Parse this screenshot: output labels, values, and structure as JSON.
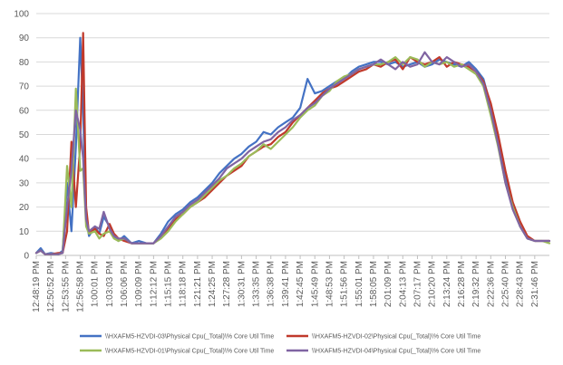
{
  "chart_data": {
    "type": "line",
    "title": "",
    "xlabel": "",
    "ylabel": "",
    "ylim": [
      0,
      100
    ],
    "yticks": [
      0,
      10,
      20,
      30,
      40,
      50,
      60,
      70,
      80,
      90,
      100
    ],
    "grid": "horizontal",
    "legend_position": "bottom",
    "x_tick_labels": [
      "12:48:19 PM",
      "12:50:52 PM",
      "12:53:55 PM",
      "12:56:58 PM",
      "1:00:01 PM",
      "1:03:03 PM",
      "1:06:06 PM",
      "1:09:09 PM",
      "1:12:12 PM",
      "1:15:15 PM",
      "1:18:18 PM",
      "1:21:21 PM",
      "1:24:25 PM",
      "1:27:28 PM",
      "1:30:31 PM",
      "1:33:35 PM",
      "1:36:38 PM",
      "1:39:41 PM",
      "1:42:45 PM",
      "1:45:49 PM",
      "1:48:53 PM",
      "1:51:56 PM",
      "1:55:01 PM",
      "1:58:05 PM",
      "2:01:09 PM",
      "2:04:13 PM",
      "2:07:17 PM",
      "2:10:20 PM",
      "2:13:24 PM",
      "2:16:28 PM",
      "2:19:32 PM",
      "2:22:36 PM",
      "2:25:40 PM",
      "2:28:43 PM",
      "2:31:46 PM"
    ],
    "series": [
      {
        "name": "\\\\HXAFM5-HZVDI-03\\Physical Cpu(_Total)\\% Core Util Time",
        "color": "#4472C4",
        "values": [
          [
            0,
            1
          ],
          [
            0.3,
            3
          ],
          [
            0.6,
            0.5
          ],
          [
            1,
            1
          ],
          [
            1.5,
            0.5
          ],
          [
            1.8,
            2
          ],
          [
            2.1,
            30
          ],
          [
            2.4,
            10
          ],
          [
            2.7,
            45
          ],
          [
            3,
            90
          ],
          [
            3.2,
            60
          ],
          [
            3.4,
            15
          ],
          [
            3.6,
            8
          ],
          [
            4,
            12
          ],
          [
            4.3,
            9
          ],
          [
            4.6,
            16
          ],
          [
            5,
            12
          ],
          [
            5.3,
            8
          ],
          [
            5.6,
            6
          ],
          [
            6,
            8
          ],
          [
            6.5,
            5
          ],
          [
            7,
            6
          ],
          [
            7.5,
            5
          ],
          [
            8,
            5
          ],
          [
            8.5,
            9
          ],
          [
            9,
            14
          ],
          [
            9.5,
            17
          ],
          [
            10,
            19
          ],
          [
            10.5,
            22
          ],
          [
            11,
            24
          ],
          [
            11.5,
            27
          ],
          [
            12,
            30
          ],
          [
            12.5,
            34
          ],
          [
            13,
            37
          ],
          [
            13.5,
            40
          ],
          [
            14,
            42
          ],
          [
            14.5,
            45
          ],
          [
            15,
            47
          ],
          [
            15.5,
            51
          ],
          [
            16,
            50
          ],
          [
            16.5,
            53
          ],
          [
            17,
            55
          ],
          [
            17.5,
            57
          ],
          [
            18,
            61
          ],
          [
            18.5,
            73
          ],
          [
            19,
            67
          ],
          [
            19.5,
            68
          ],
          [
            20,
            70
          ],
          [
            20.5,
            72
          ],
          [
            21,
            73
          ],
          [
            21.5,
            76
          ],
          [
            22,
            78
          ],
          [
            22.5,
            79
          ],
          [
            23,
            80
          ],
          [
            23.5,
            80
          ],
          [
            24,
            79
          ],
          [
            24.5,
            80
          ],
          [
            25,
            78
          ],
          [
            25.5,
            79
          ],
          [
            26,
            80
          ],
          [
            26.5,
            78
          ],
          [
            27,
            79
          ],
          [
            27.5,
            81
          ],
          [
            28,
            80
          ],
          [
            28.5,
            79
          ],
          [
            29,
            78
          ],
          [
            29.5,
            80
          ],
          [
            30,
            77
          ],
          [
            30.5,
            73
          ],
          [
            31,
            62
          ],
          [
            31.5,
            48
          ],
          [
            32,
            32
          ],
          [
            32.5,
            20
          ],
          [
            33,
            12
          ],
          [
            33.5,
            7
          ],
          [
            34,
            6
          ],
          [
            34.5,
            6
          ],
          [
            35,
            6
          ]
        ]
      },
      {
        "name": "\\\\HXAFM5-HZVDI-02\\Physical Cpu(_Total)\\% Core Util Time",
        "color": "#C0392B",
        "values": [
          [
            0,
            1
          ],
          [
            0.3,
            2
          ],
          [
            0.6,
            0.5
          ],
          [
            1,
            0.5
          ],
          [
            1.5,
            1
          ],
          [
            1.8,
            1
          ],
          [
            2.1,
            10
          ],
          [
            2.4,
            47
          ],
          [
            2.7,
            20
          ],
          [
            3,
            46
          ],
          [
            3.2,
            92
          ],
          [
            3.4,
            20
          ],
          [
            3.6,
            9
          ],
          [
            4,
            11
          ],
          [
            4.3,
            9
          ],
          [
            4.6,
            8
          ],
          [
            5,
            13
          ],
          [
            5.3,
            9
          ],
          [
            5.6,
            7
          ],
          [
            6,
            6
          ],
          [
            6.5,
            5
          ],
          [
            7,
            5
          ],
          [
            7.5,
            5
          ],
          [
            8,
            5
          ],
          [
            8.5,
            8
          ],
          [
            9,
            11
          ],
          [
            9.5,
            15
          ],
          [
            10,
            17
          ],
          [
            10.5,
            20
          ],
          [
            11,
            22
          ],
          [
            11.5,
            24
          ],
          [
            12,
            27
          ],
          [
            12.5,
            30
          ],
          [
            13,
            33
          ],
          [
            13.5,
            35
          ],
          [
            14,
            37
          ],
          [
            14.5,
            41
          ],
          [
            15,
            43
          ],
          [
            15.5,
            45
          ],
          [
            16,
            46
          ],
          [
            16.5,
            49
          ],
          [
            17,
            51
          ],
          [
            17.5,
            55
          ],
          [
            18,
            58
          ],
          [
            18.5,
            61
          ],
          [
            19,
            64
          ],
          [
            19.5,
            67
          ],
          [
            20,
            69
          ],
          [
            20.5,
            70
          ],
          [
            21,
            72
          ],
          [
            21.5,
            74
          ],
          [
            22,
            76
          ],
          [
            22.5,
            77
          ],
          [
            23,
            79
          ],
          [
            23.5,
            78
          ],
          [
            24,
            80
          ],
          [
            24.5,
            81
          ],
          [
            25,
            77
          ],
          [
            25.5,
            82
          ],
          [
            26,
            80
          ],
          [
            26.5,
            79
          ],
          [
            27,
            80
          ],
          [
            27.5,
            82
          ],
          [
            28,
            78
          ],
          [
            28.5,
            80
          ],
          [
            29,
            79
          ],
          [
            29.5,
            78
          ],
          [
            30,
            76
          ],
          [
            30.5,
            72
          ],
          [
            31,
            63
          ],
          [
            31.5,
            50
          ],
          [
            32,
            35
          ],
          [
            32.5,
            22
          ],
          [
            33,
            14
          ],
          [
            33.5,
            8
          ],
          [
            34,
            6
          ],
          [
            34.5,
            6
          ],
          [
            35,
            6
          ]
        ]
      },
      {
        "name": "\\\\HXAFM5-HZVDI-01\\Physical Cpu(_Total)\\% Core Util Time",
        "color": "#9BBB59",
        "values": [
          [
            0,
            1
          ],
          [
            0.3,
            2
          ],
          [
            0.6,
            0.5
          ],
          [
            1,
            0.5
          ],
          [
            1.5,
            0.5
          ],
          [
            1.8,
            1
          ],
          [
            2.1,
            37
          ],
          [
            2.4,
            20
          ],
          [
            2.7,
            69
          ],
          [
            3,
            35
          ],
          [
            3.2,
            36
          ],
          [
            3.4,
            12
          ],
          [
            3.6,
            9
          ],
          [
            4,
            10
          ],
          [
            4.3,
            7
          ],
          [
            4.6,
            9
          ],
          [
            5,
            10
          ],
          [
            5.3,
            7
          ],
          [
            5.6,
            6
          ],
          [
            6,
            7
          ],
          [
            6.5,
            5
          ],
          [
            7,
            5
          ],
          [
            7.5,
            5
          ],
          [
            8,
            5
          ],
          [
            8.5,
            7
          ],
          [
            9,
            10
          ],
          [
            9.5,
            14
          ],
          [
            10,
            17
          ],
          [
            10.5,
            20
          ],
          [
            11,
            22
          ],
          [
            11.5,
            25
          ],
          [
            12,
            28
          ],
          [
            12.5,
            31
          ],
          [
            13,
            33
          ],
          [
            13.5,
            36
          ],
          [
            14,
            38
          ],
          [
            14.5,
            41
          ],
          [
            15,
            43
          ],
          [
            15.5,
            46
          ],
          [
            16,
            44
          ],
          [
            16.5,
            47
          ],
          [
            17,
            50
          ],
          [
            17.5,
            53
          ],
          [
            18,
            57
          ],
          [
            18.5,
            60
          ],
          [
            19,
            62
          ],
          [
            19.5,
            66
          ],
          [
            20,
            68
          ],
          [
            20.5,
            72
          ],
          [
            21,
            74
          ],
          [
            21.5,
            75
          ],
          [
            22,
            77
          ],
          [
            22.5,
            78
          ],
          [
            23,
            79
          ],
          [
            23.5,
            79
          ],
          [
            24,
            80
          ],
          [
            24.5,
            82
          ],
          [
            25,
            79
          ],
          [
            25.5,
            82
          ],
          [
            26,
            81
          ],
          [
            26.5,
            78
          ],
          [
            27,
            80
          ],
          [
            27.5,
            79
          ],
          [
            28,
            80
          ],
          [
            28.5,
            78
          ],
          [
            29,
            79
          ],
          [
            29.5,
            77
          ],
          [
            30,
            75
          ],
          [
            30.5,
            70
          ],
          [
            31,
            58
          ],
          [
            31.5,
            45
          ],
          [
            32,
            30
          ],
          [
            32.5,
            20
          ],
          [
            33,
            12
          ],
          [
            33.5,
            7
          ],
          [
            34,
            6
          ],
          [
            34.5,
            6
          ],
          [
            35,
            5
          ]
        ]
      },
      {
        "name": "\\\\HXAFM5-HZVDI-04\\Physical Cpu(_Total)\\% Core Util Time",
        "color": "#8064A2",
        "values": [
          [
            0,
            1
          ],
          [
            0.3,
            2
          ],
          [
            0.6,
            0.5
          ],
          [
            1,
            0.5
          ],
          [
            1.5,
            0.5
          ],
          [
            1.8,
            1
          ],
          [
            2.1,
            20
          ],
          [
            2.4,
            35
          ],
          [
            2.7,
            60
          ],
          [
            3,
            52
          ],
          [
            3.2,
            40
          ],
          [
            3.4,
            15
          ],
          [
            3.6,
            10
          ],
          [
            4,
            12
          ],
          [
            4.3,
            11
          ],
          [
            4.6,
            18
          ],
          [
            5,
            11
          ],
          [
            5.3,
            8
          ],
          [
            5.6,
            7
          ],
          [
            6,
            7
          ],
          [
            6.5,
            5
          ],
          [
            7,
            5
          ],
          [
            7.5,
            5
          ],
          [
            8,
            5
          ],
          [
            8.5,
            8
          ],
          [
            9,
            12
          ],
          [
            9.5,
            16
          ],
          [
            10,
            18
          ],
          [
            10.5,
            21
          ],
          [
            11,
            23
          ],
          [
            11.5,
            26
          ],
          [
            12,
            29
          ],
          [
            12.5,
            32
          ],
          [
            13,
            36
          ],
          [
            13.5,
            38
          ],
          [
            14,
            40
          ],
          [
            14.5,
            43
          ],
          [
            15,
            45
          ],
          [
            15.5,
            47
          ],
          [
            16,
            48
          ],
          [
            16.5,
            51
          ],
          [
            17,
            53
          ],
          [
            17.5,
            56
          ],
          [
            18,
            58
          ],
          [
            18.5,
            61
          ],
          [
            19,
            63
          ],
          [
            19.5,
            66
          ],
          [
            20,
            69
          ],
          [
            20.5,
            71
          ],
          [
            21,
            73
          ],
          [
            21.5,
            75
          ],
          [
            22,
            77
          ],
          [
            22.5,
            78
          ],
          [
            23,
            79
          ],
          [
            23.5,
            81
          ],
          [
            24,
            79
          ],
          [
            24.5,
            77
          ],
          [
            25,
            80
          ],
          [
            25.5,
            78
          ],
          [
            26,
            79
          ],
          [
            26.5,
            84
          ],
          [
            27,
            80
          ],
          [
            27.5,
            79
          ],
          [
            28,
            82
          ],
          [
            28.5,
            80
          ],
          [
            29,
            78
          ],
          [
            29.5,
            79
          ],
          [
            30,
            76
          ],
          [
            30.5,
            71
          ],
          [
            31,
            60
          ],
          [
            31.5,
            46
          ],
          [
            32,
            30
          ],
          [
            32.5,
            19
          ],
          [
            33,
            12
          ],
          [
            33.5,
            7
          ],
          [
            34,
            6
          ],
          [
            34.5,
            6
          ],
          [
            35,
            6
          ]
        ]
      }
    ]
  }
}
